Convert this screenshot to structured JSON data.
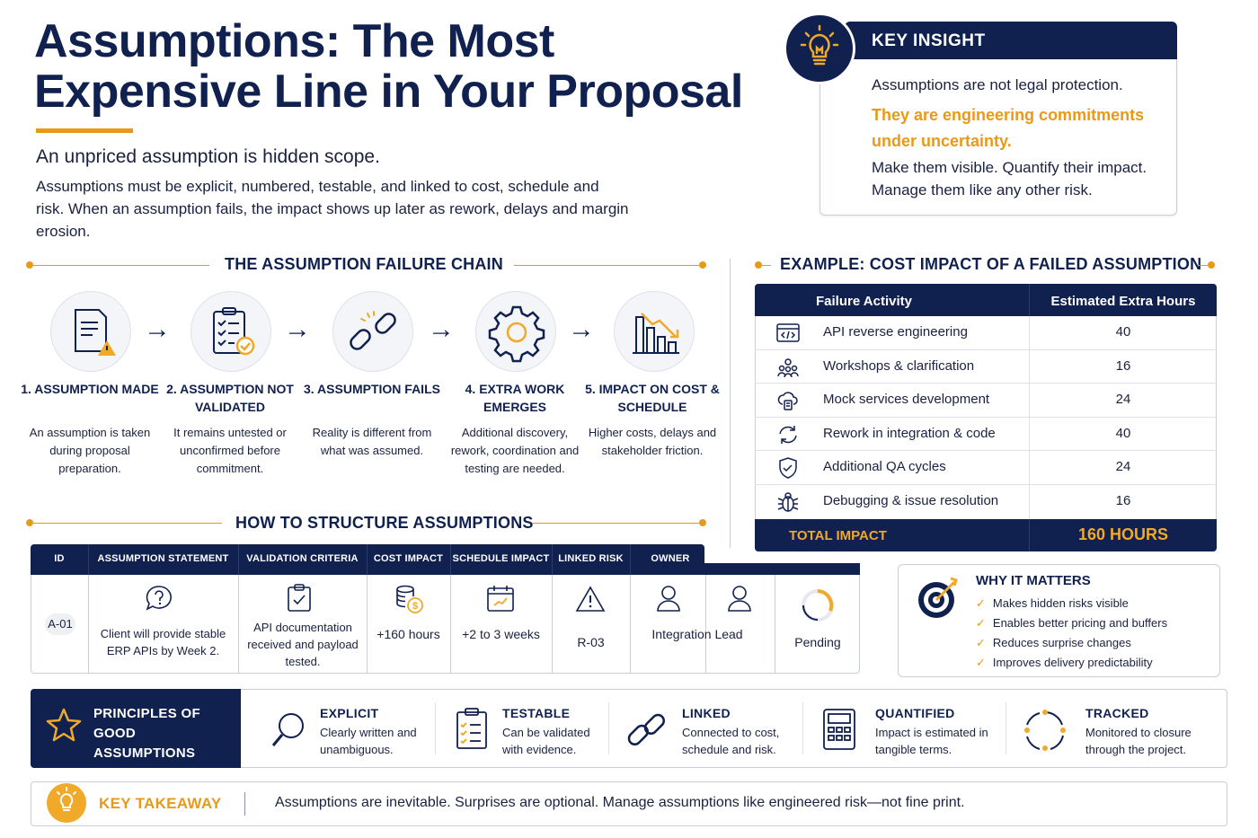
{
  "header": {
    "title": "Assumptions: The Most Expensive Line in Your Proposal",
    "subtitle": "An unpriced assumption is hidden scope.",
    "intro": "Assumptions must be explicit, numbered, testable, and linked to cost, schedule and risk. When an assumption fails, the impact shows up later as rework, delays and margin erosion."
  },
  "key_insight": {
    "label": "KEY INSIGHT",
    "line1": "Assumptions are not legal protection.",
    "line2": "They are engineering commitments under uncertainty.",
    "line3": "Make them visible. Quantify their impact. Manage them like any other risk."
  },
  "failure_chain": {
    "heading": "THE ASSUMPTION FAILURE CHAIN",
    "steps": [
      {
        "title": "1. ASSUMPTION MADE",
        "desc": "An assumption is taken during proposal preparation.",
        "icon": "document-warning-icon"
      },
      {
        "title": "2. ASSUMPTION NOT VALIDATED",
        "desc": "It remains untested or unconfirmed before commitment.",
        "icon": "clipboard-check-icon"
      },
      {
        "title": "3. ASSUMPTION FAILS",
        "desc": "Reality is different from what was assumed.",
        "icon": "broken-link-icon"
      },
      {
        "title": "4. EXTRA WORK EMERGES",
        "desc": "Additional discovery, rework, coordination and testing are needed.",
        "icon": "gear-icon"
      },
      {
        "title": "5. IMPACT ON COST & SCHEDULE",
        "desc": "Higher costs, delays and stakeholder friction.",
        "icon": "declining-chart-icon"
      }
    ]
  },
  "cost_example": {
    "heading": "EXAMPLE: COST IMPACT OF A FAILED ASSUMPTION",
    "col1": "Failure Activity",
    "col2": "Estimated Extra Hours",
    "rows": [
      {
        "activity": "API reverse engineering",
        "hours": "40",
        "icon": "code-window-icon"
      },
      {
        "activity": "Workshops & clarification",
        "hours": "16",
        "icon": "people-group-icon"
      },
      {
        "activity": "Mock services development",
        "hours": "24",
        "icon": "cloud-server-icon"
      },
      {
        "activity": "Rework in integration & code",
        "hours": "40",
        "icon": "refresh-icon"
      },
      {
        "activity": "Additional QA cycles",
        "hours": "24",
        "icon": "shield-check-icon"
      },
      {
        "activity": "Debugging & issue resolution",
        "hours": "16",
        "icon": "bug-icon"
      }
    ],
    "total_label": "TOTAL IMPACT",
    "total_value": "160 HOURS"
  },
  "structure": {
    "heading": "HOW TO STRUCTURE ASSUMPTIONS",
    "columns": [
      "ID",
      "ASSUMPTION STATEMENT",
      "VALIDATION CRITERIA",
      "COST IMPACT",
      "SCHEDULE IMPACT",
      "LINKED RISK",
      "OWNER"
    ],
    "row": {
      "id": "A-01",
      "statement": "Client will provide stable ERP APIs by Week 2.",
      "validation": "API documentation received and payload tested.",
      "cost": "+160 hours",
      "schedule": "+2 to 3 weeks",
      "risk": "R-03",
      "owner": "Integration Lead",
      "status": "Pending"
    }
  },
  "why_it_matters": {
    "title": "WHY IT MATTERS",
    "items": [
      "Makes hidden risks visible",
      "Enables better pricing and buffers",
      "Reduces surprise changes",
      "Improves delivery predictability"
    ]
  },
  "principles": {
    "label": "PRINCIPLES OF GOOD ASSUMPTIONS",
    "items": [
      {
        "title": "EXPLICIT",
        "desc": "Clearly written and unambiguous.",
        "icon": "magnifier-icon"
      },
      {
        "title": "TESTABLE",
        "desc": "Can be validated with evidence.",
        "icon": "checklist-icon"
      },
      {
        "title": "LINKED",
        "desc": "Connected to cost, schedule and risk.",
        "icon": "chain-link-icon"
      },
      {
        "title": "QUANTIFIED",
        "desc": "Impact is estimated in tangible terms.",
        "icon": "calculator-icon"
      },
      {
        "title": "TRACKED",
        "desc": "Monitored to closure through the project.",
        "icon": "cycle-arrows-icon"
      }
    ]
  },
  "takeaway": {
    "label": "KEY TAKEAWAY",
    "text": "Assumptions are inevitable. Surprises are optional. Manage assumptions like engineered risk—not fine print."
  },
  "colors": {
    "navy": "#10204f",
    "orange": "#e89a17"
  }
}
